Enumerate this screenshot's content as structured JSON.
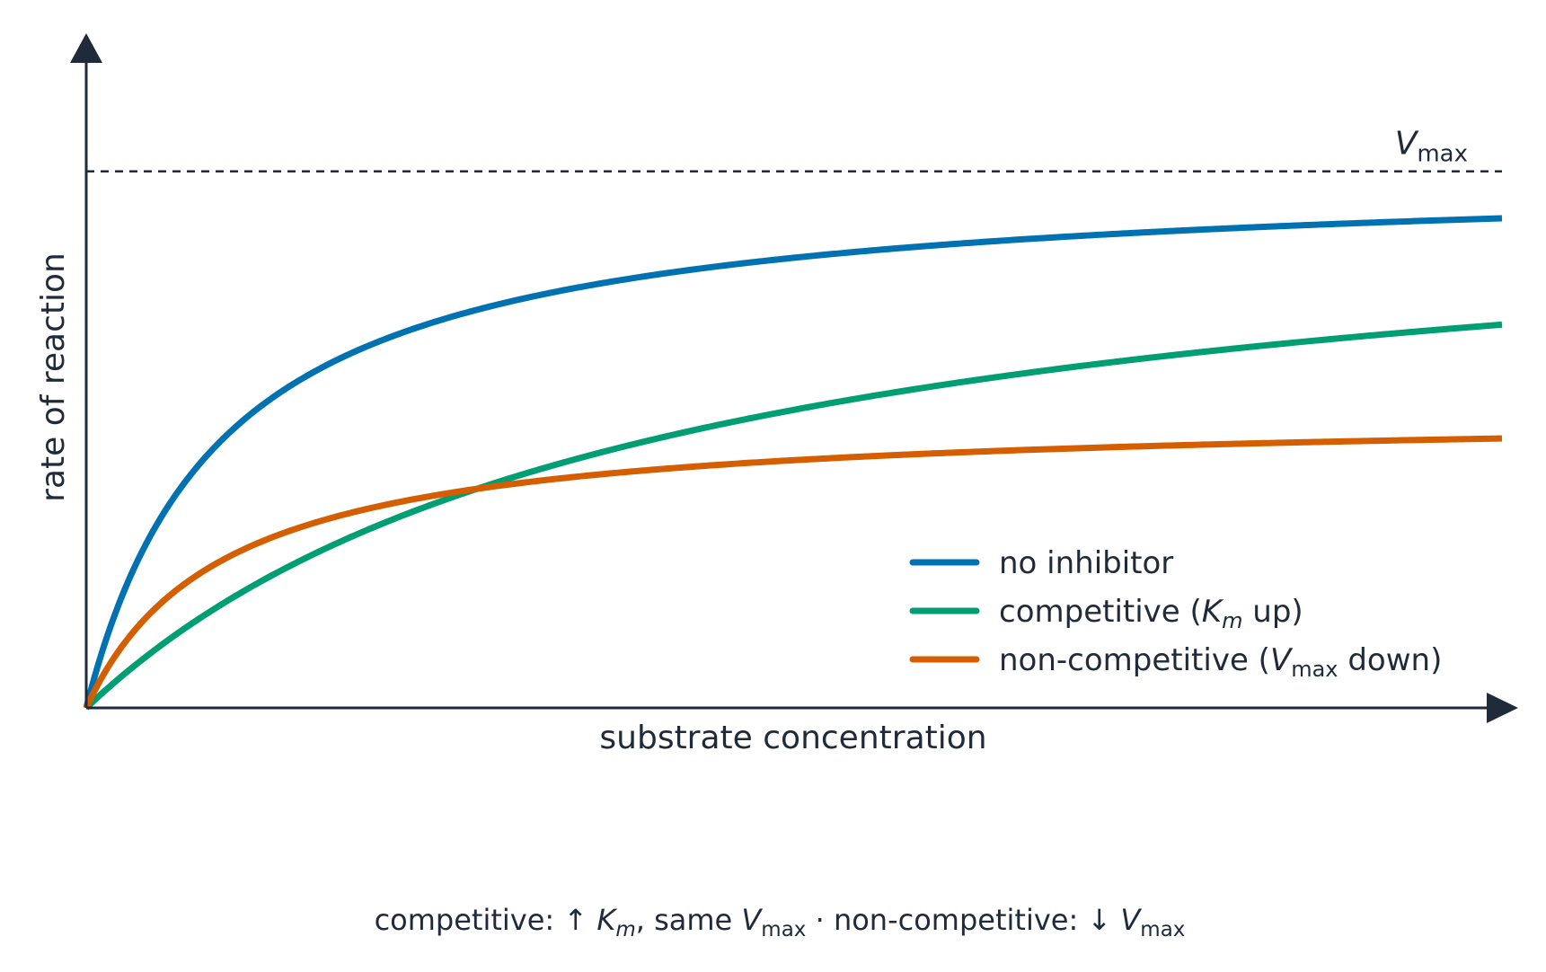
{
  "chart_data": {
    "type": "line",
    "xlabel": "substrate concentration",
    "ylabel": "rate of reaction",
    "xlim": [
      0,
      100
    ],
    "ylim": [
      0,
      100
    ],
    "grid": false,
    "legend_position": "bottom-right",
    "reference_line": {
      "label_main": "V",
      "label_sub": "max",
      "y": 82.5,
      "style": "dashed",
      "color": "#1f2a3a"
    },
    "series": [
      {
        "name_parts": [
          {
            "t": "no inhibitor"
          }
        ],
        "color": "#0072b2",
        "Vmax": 82.5,
        "Km": 9.6
      },
      {
        "name_parts": [
          {
            "t": "competitive ("
          },
          {
            "t": "K",
            "i": true
          },
          {
            "t": "m",
            "i": true,
            "sub": true
          },
          {
            "t": " up)"
          }
        ],
        "color": "#009e73",
        "Vmax": 82.5,
        "Km": 40
      },
      {
        "name_parts": [
          {
            "t": "non-competitive ("
          },
          {
            "t": "V",
            "i": true
          },
          {
            "t": "max",
            "sub": true
          },
          {
            "t": " down)"
          }
        ],
        "color": "#d55e00",
        "Vmax": 45.4,
        "Km": 9.6
      }
    ],
    "footnote_parts": [
      {
        "t": "competitive:  ↑ "
      },
      {
        "t": "K",
        "i": true
      },
      {
        "t": "m",
        "i": true,
        "sub": true
      },
      {
        "t": ", same "
      },
      {
        "t": "V",
        "i": true
      },
      {
        "t": "max",
        "sub": true
      },
      {
        "t": "  ·  non-competitive:  ↓ "
      },
      {
        "t": "V",
        "i": true
      },
      {
        "t": "max",
        "sub": true
      }
    ]
  }
}
